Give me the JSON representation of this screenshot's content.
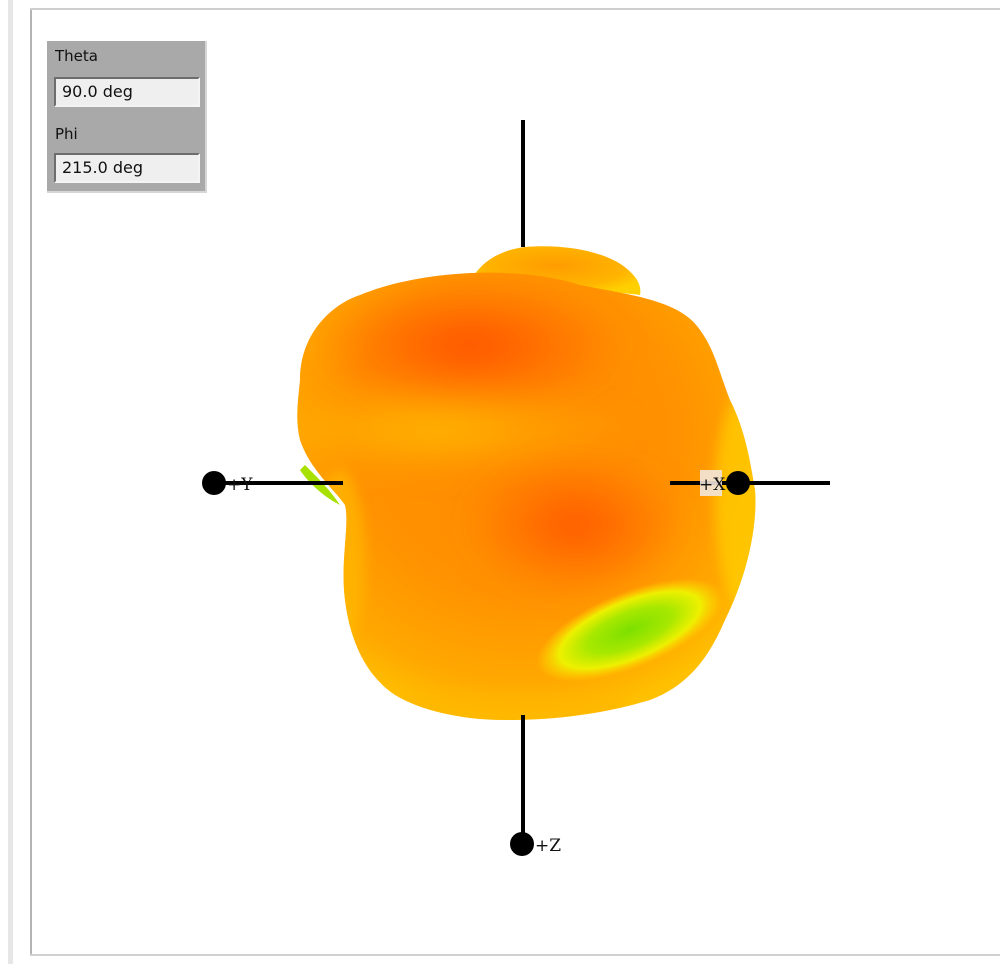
{
  "controls": {
    "theta": {
      "label": "Theta",
      "value": "90.0 deg"
    },
    "phi": {
      "label": "Phi",
      "value": "215.0 deg"
    }
  },
  "axes": {
    "y_label": "+Y",
    "x_label": "+X",
    "z_label": "+Z"
  },
  "colors": {
    "pattern_peak": "#ff5400",
    "pattern_mid": "#ff9a00",
    "pattern_low": "#ffd200",
    "pattern_min": "#88e000",
    "axis": "#000000"
  }
}
